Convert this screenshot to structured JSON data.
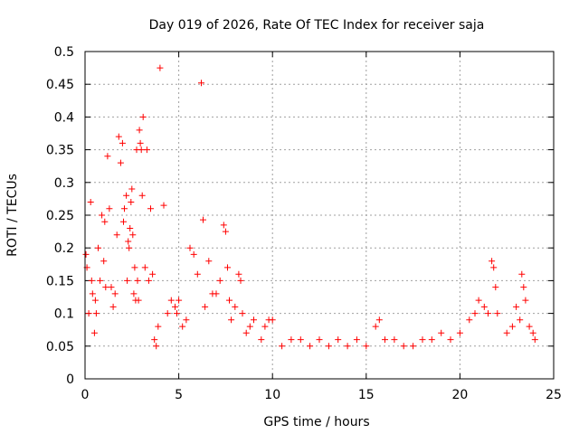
{
  "chart_data": {
    "type": "scatter",
    "title": "Day 019 of 2026, Rate Of TEC Index for receiver saja",
    "xlabel": "GPS time / hours",
    "ylabel": "ROTI / TECUs",
    "xlim": [
      0,
      25
    ],
    "ylim": [
      0,
      0.5
    ],
    "xticks": [
      0,
      5,
      10,
      15,
      20,
      25
    ],
    "xtick_labels": [
      "0",
      "5",
      "10",
      "15",
      "20",
      "25"
    ],
    "yticks": [
      0,
      0.05,
      0.1,
      0.15,
      0.2,
      0.25,
      0.3,
      0.35,
      0.4,
      0.45,
      0.5
    ],
    "ytick_labels": [
      "0",
      "0.05",
      "0.1",
      "0.15",
      "0.2",
      "0.25",
      "0.3",
      "0.35",
      "0.4",
      "0.45",
      "0.5"
    ],
    "grid": true,
    "marker": "plus",
    "color": "#ff0000",
    "series": [
      {
        "name": "ROTI",
        "x": [
          0.05,
          0.1,
          0.2,
          0.3,
          0.35,
          0.4,
          0.5,
          0.55,
          0.6,
          0.7,
          0.8,
          0.9,
          1.0,
          1.05,
          1.1,
          1.2,
          1.3,
          1.4,
          1.5,
          1.6,
          1.7,
          1.8,
          1.9,
          2.0,
          2.05,
          2.1,
          2.2,
          2.25,
          2.3,
          2.35,
          2.4,
          2.45,
          2.5,
          2.55,
          2.6,
          2.65,
          2.7,
          2.75,
          2.8,
          2.85,
          2.9,
          2.95,
          3.0,
          3.05,
          3.1,
          3.2,
          3.3,
          3.4,
          3.5,
          3.6,
          3.7,
          3.8,
          3.9,
          4.0,
          4.2,
          4.4,
          4.6,
          4.8,
          4.9,
          5.0,
          5.2,
          5.4,
          5.6,
          5.8,
          6.0,
          6.2,
          6.3,
          6.4,
          6.6,
          6.8,
          7.0,
          7.2,
          7.4,
          7.5,
          7.6,
          7.7,
          7.8,
          8.0,
          8.2,
          8.3,
          8.4,
          8.6,
          8.8,
          9.0,
          9.4,
          9.6,
          9.8,
          10.0,
          10.5,
          11.0,
          11.5,
          12.0,
          12.5,
          13.0,
          13.5,
          14.0,
          14.5,
          15.0,
          15.5,
          15.7,
          16.0,
          16.5,
          17.0,
          17.5,
          18.0,
          18.5,
          19.0,
          19.5,
          20.0,
          20.5,
          20.8,
          21.0,
          21.3,
          21.5,
          21.7,
          21.8,
          21.9,
          22.0,
          22.5,
          22.8,
          23.0,
          23.2,
          23.3,
          23.4,
          23.5,
          23.7,
          23.9,
          24.0
        ],
        "y": [
          0.19,
          0.17,
          0.1,
          0.27,
          0.15,
          0.13,
          0.07,
          0.12,
          0.1,
          0.2,
          0.15,
          0.25,
          0.18,
          0.24,
          0.14,
          0.34,
          0.26,
          0.14,
          0.11,
          0.13,
          0.22,
          0.37,
          0.33,
          0.36,
          0.24,
          0.26,
          0.28,
          0.15,
          0.21,
          0.2,
          0.23,
          0.27,
          0.29,
          0.22,
          0.13,
          0.17,
          0.12,
          0.35,
          0.15,
          0.12,
          0.38,
          0.36,
          0.35,
          0.28,
          0.4,
          0.17,
          0.35,
          0.15,
          0.26,
          0.16,
          0.06,
          0.05,
          0.08,
          0.475,
          0.265,
          0.1,
          0.12,
          0.11,
          0.1,
          0.12,
          0.08,
          0.09,
          0.2,
          0.19,
          0.16,
          0.452,
          0.243,
          0.11,
          0.18,
          0.13,
          0.13,
          0.15,
          0.235,
          0.225,
          0.17,
          0.12,
          0.09,
          0.11,
          0.16,
          0.15,
          0.1,
          0.07,
          0.08,
          0.09,
          0.06,
          0.08,
          0.09,
          0.09,
          0.05,
          0.06,
          0.06,
          0.05,
          0.06,
          0.05,
          0.06,
          0.05,
          0.06,
          0.05,
          0.08,
          0.09,
          0.06,
          0.06,
          0.05,
          0.05,
          0.06,
          0.06,
          0.07,
          0.06,
          0.07,
          0.09,
          0.1,
          0.12,
          0.11,
          0.1,
          0.18,
          0.17,
          0.14,
          0.1,
          0.07,
          0.08,
          0.11,
          0.09,
          0.16,
          0.14,
          0.12,
          0.08,
          0.07,
          0.06
        ]
      }
    ]
  }
}
